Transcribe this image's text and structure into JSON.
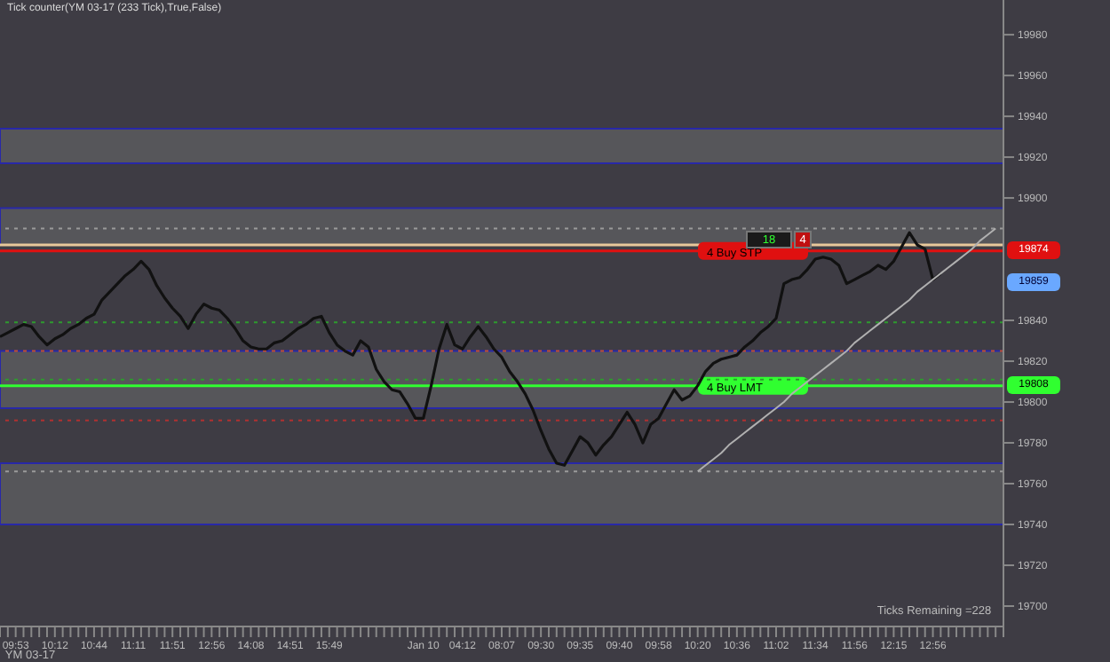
{
  "chart_data": {
    "type": "line",
    "title": "Tick counter(YM 03-17 (233 Tick),True,False)",
    "categories": [
      null,
      null,
      "09:53",
      null,
      null,
      null,
      null,
      "10:12",
      null,
      null,
      null,
      null,
      "10:44",
      null,
      null,
      null,
      null,
      "11:11",
      null,
      null,
      null,
      null,
      "11:51",
      null,
      null,
      null,
      null,
      "12:56",
      null,
      null,
      null,
      null,
      "14:08",
      null,
      null,
      null,
      null,
      "14:51",
      null,
      null,
      null,
      null,
      "15:49",
      null,
      null,
      null,
      null,
      null,
      null,
      null,
      null,
      null,
      null,
      null,
      "Jan 10",
      null,
      null,
      null,
      null,
      "04:12",
      null,
      null,
      null,
      null,
      "08:07",
      null,
      null,
      null,
      null,
      "09:30",
      null,
      null,
      null,
      null,
      "09:35",
      null,
      null,
      null,
      null,
      "09:40",
      null,
      null,
      null,
      null,
      "09:58",
      null,
      null,
      null,
      null,
      "10:20",
      null,
      null,
      null,
      null,
      "10:36",
      null,
      null,
      null,
      null,
      "11:02",
      null,
      null,
      null,
      null,
      "11:34",
      null,
      null,
      null,
      null,
      "11:56",
      null,
      null,
      null,
      null,
      "12:15",
      null,
      null,
      null,
      null,
      "12:56",
      null,
      null,
      null,
      null,
      null,
      null,
      null,
      null,
      null
    ],
    "series": [
      {
        "color": "#111111",
        "line_style": "solid",
        "values": [
          19832,
          19834,
          19836,
          19838,
          19837,
          19832,
          19828,
          19831,
          19833,
          19836,
          19838,
          19841,
          19843,
          19850,
          19854,
          19858,
          19862,
          19865,
          19869,
          19865,
          19857,
          19851,
          19846,
          19842,
          19836,
          19843,
          19848,
          19846,
          19845,
          19841,
          19836,
          19830,
          19827,
          19826,
          19826,
          19829,
          19830,
          19833,
          19836,
          19838,
          19841,
          19842,
          19834,
          19828,
          19825,
          19823,
          19830,
          19827,
          19816,
          19810,
          19806,
          19805,
          19799,
          19792,
          19792,
          19808,
          19826,
          19838,
          19828,
          19826,
          19832,
          19837,
          19832,
          19826,
          19822,
          19815,
          19810,
          19804,
          19796,
          19786,
          19777,
          19770,
          19769,
          19776,
          19783,
          19780,
          19774,
          19779,
          19783,
          19789,
          19795,
          19789,
          19780,
          19789,
          19792,
          19799,
          19806,
          19801,
          19803,
          19808,
          19815,
          19819,
          19821,
          19822,
          19823,
          19827,
          19830,
          19834,
          19837,
          19841,
          19858,
          19860,
          19861,
          19865,
          19870,
          19871,
          19870,
          19867,
          19858,
          19860,
          19862,
          19864,
          19867,
          19865,
          19869,
          19876,
          19883,
          19877,
          19875,
          19860,
          19863,
          null,
          null,
          null,
          null,
          null,
          null,
          null,
          null
        ]
      },
      {
        "color": "#b0b0b0",
        "line_style": "solid",
        "values": [
          null,
          null,
          null,
          null,
          null,
          null,
          null,
          null,
          null,
          null,
          null,
          null,
          null,
          null,
          null,
          null,
          null,
          null,
          null,
          null,
          null,
          null,
          null,
          null,
          null,
          null,
          null,
          null,
          null,
          null,
          null,
          null,
          null,
          null,
          null,
          null,
          null,
          null,
          null,
          null,
          null,
          null,
          null,
          null,
          null,
          null,
          null,
          null,
          null,
          null,
          null,
          null,
          null,
          null,
          null,
          null,
          null,
          null,
          null,
          null,
          null,
          null,
          null,
          null,
          null,
          null,
          null,
          null,
          null,
          null,
          null,
          null,
          null,
          null,
          null,
          null,
          null,
          null,
          null,
          null,
          null,
          null,
          null,
          null,
          null,
          null,
          null,
          null,
          null,
          19766,
          19769,
          19772,
          19775,
          19779,
          19782,
          19785,
          19788,
          19791,
          19794,
          19797,
          19800,
          19804,
          19807,
          19810,
          19813,
          19816,
          19819,
          19822,
          19825,
          19829,
          19832,
          19835,
          19838,
          19841,
          19844,
          19847,
          19850,
          19854,
          19857,
          19860,
          19863,
          19866,
          19869,
          19872,
          19875,
          19879,
          19882,
          19885,
          null
        ]
      }
    ],
    "ylim": [
      19690,
      19997
    ],
    "yticks": [
      19700,
      19720,
      19740,
      19760,
      19780,
      19800,
      19820,
      19840,
      19900,
      19920,
      19940,
      19960,
      19980
    ],
    "bands": [
      {
        "axis": "y",
        "from": 19917,
        "to": 19934,
        "color": "#56565a"
      },
      {
        "axis": "y",
        "from": 19877,
        "to": 19895,
        "color": "#56565a"
      },
      {
        "axis": "y",
        "from": 19797,
        "to": 19825,
        "color": "#56565a"
      },
      {
        "axis": "y",
        "from": 19740,
        "to": 19770,
        "color": "#56565a"
      }
    ],
    "ref_lines": [
      {
        "axis": "y",
        "value": 19877,
        "color": "#e8c89a",
        "line_style": "solid"
      },
      {
        "axis": "y",
        "value": 19874,
        "label": "4  Buy STP",
        "color": "#e01010",
        "line_style": "solid"
      },
      {
        "axis": "y",
        "value": 19808,
        "label": "4  Buy LMT",
        "color": "#30ff30",
        "line_style": "solid"
      },
      {
        "axis": "y",
        "value": 19885,
        "color": "#9a9a9a",
        "line_style": "dotted"
      },
      {
        "axis": "y",
        "value": 19839,
        "color": "#2e9a2e",
        "line_style": "dotted"
      },
      {
        "axis": "y",
        "value": 19825,
        "color": "#c05030",
        "line_style": "dotted"
      },
      {
        "axis": "y",
        "value": 19811,
        "color": "#2e9a2e",
        "line_style": "dotted"
      },
      {
        "axis": "y",
        "value": 19791,
        "color": "#b03030",
        "line_style": "dotted"
      },
      {
        "axis": "y",
        "value": 19766,
        "color": "#9a9a9a",
        "line_style": "dotted"
      }
    ],
    "annotations": [
      "18",
      "4",
      "Ticks Remaining =228",
      "YM 03-17",
      {
        "text": "19874",
        "y": 19874
      },
      {
        "text": "19859",
        "y": 19859
      },
      {
        "text": "19808",
        "y": 19808
      }
    ],
    "grid": false,
    "legend": false
  }
}
